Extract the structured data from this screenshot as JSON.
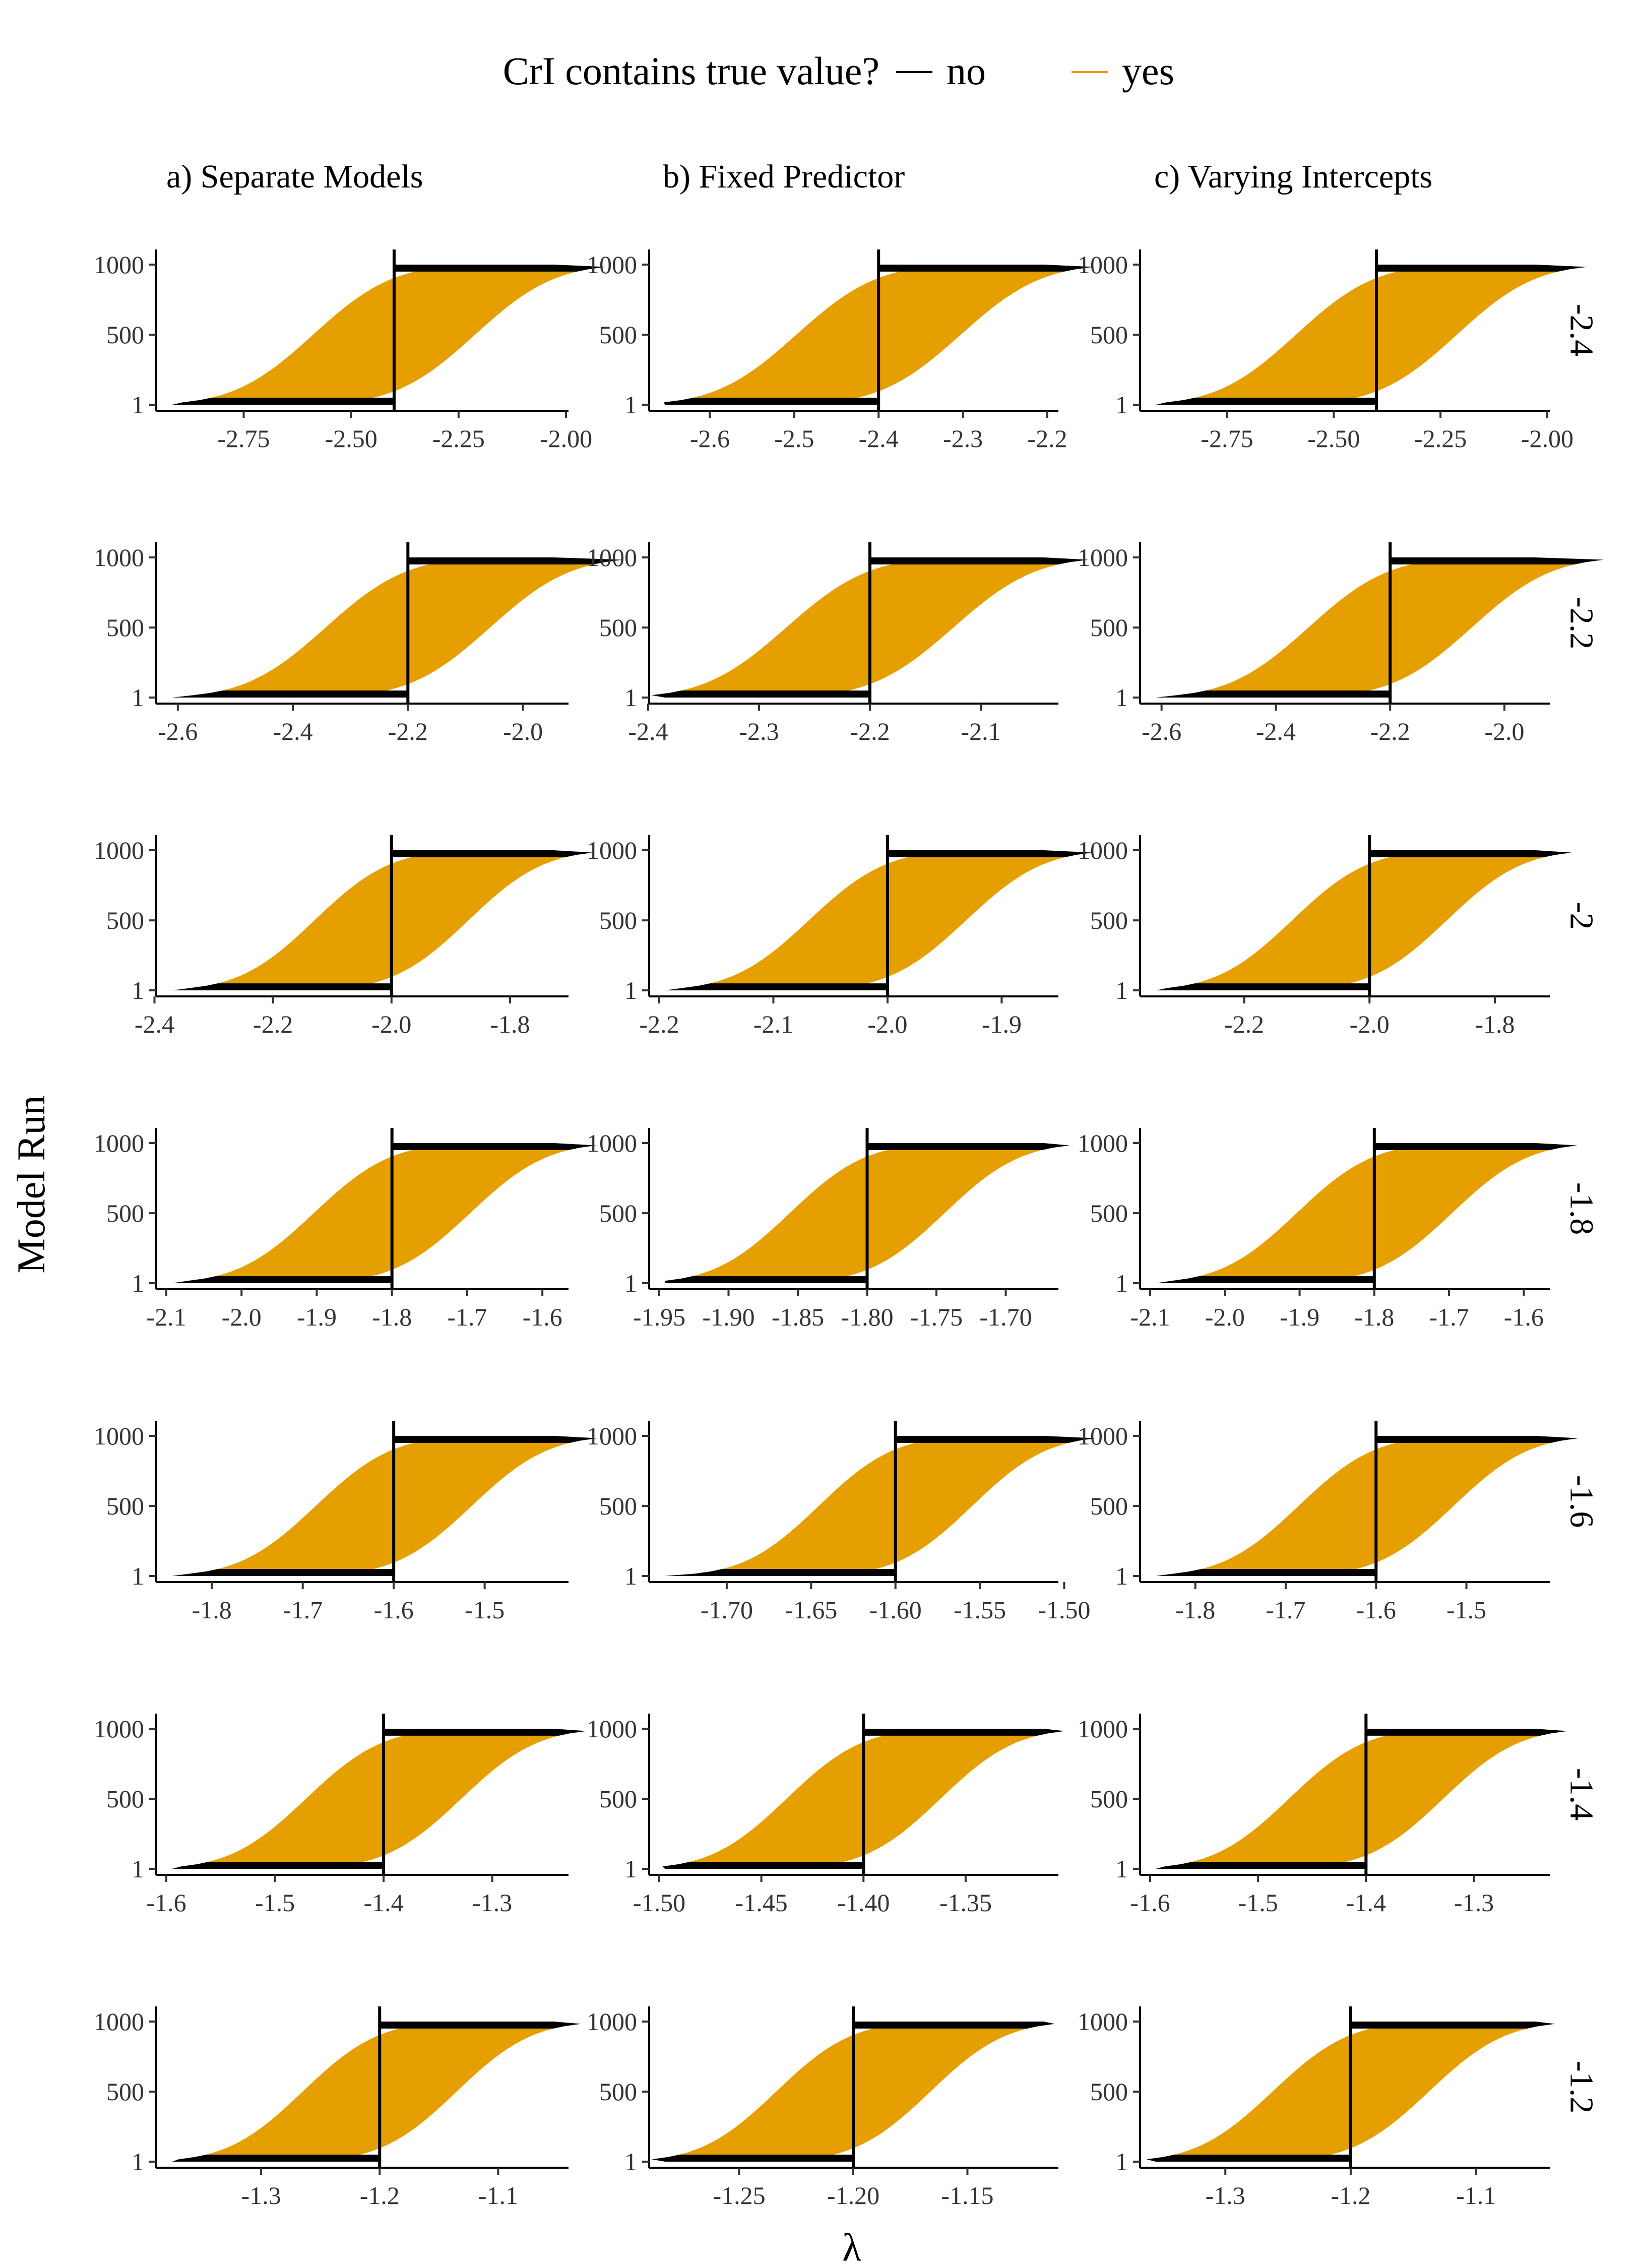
{
  "chart_data": {
    "type": "area",
    "legend": {
      "title": "CrI contains true value?",
      "placement": "top",
      "entries": [
        {
          "label": "no",
          "color": "#000000"
        },
        {
          "label": "yes",
          "color": "#E69F00"
        }
      ]
    },
    "xlabel": "λ",
    "ylabel": "Model Run",
    "y_ticks": [
      1,
      500,
      1000
    ],
    "ylim": [
      1,
      1000
    ],
    "columns": [
      "a) Separate Models",
      "b) Fixed Predictor",
      "c) Varying Intercepts"
    ],
    "rows": [
      {
        "strip": "-2.4",
        "true_value": -2.4,
        "panels": [
          {
            "xlim": [
              -2.93,
              -2.02
            ],
            "ticks": [
              -2.75,
              -2.5,
              -2.25,
              -2.0
            ],
            "tick_labels": [
              "-2.75",
              "-2.50",
              "-2.25",
              "-2.00"
            ],
            "sd": 0.145
          },
          {
            "xlim": [
              -2.66,
              -2.2
            ],
            "ticks": [
              -2.6,
              -2.5,
              -2.4,
              -2.3,
              -2.2
            ],
            "tick_labels": [
              "-2.6",
              "-2.5",
              "-2.4",
              "-2.3",
              "-2.2"
            ],
            "sd": 0.075
          },
          {
            "xlim": [
              -2.93,
              -2.02
            ],
            "ticks": [
              -2.75,
              -2.5,
              -2.25,
              -2.0
            ],
            "tick_labels": [
              "-2.75",
              "-2.50",
              "-2.25",
              "-2.00"
            ],
            "sd": 0.145
          }
        ]
      },
      {
        "strip": "-2.2",
        "true_value": -2.2,
        "panels": [
          {
            "xlim": [
              -2.62,
              -1.94
            ],
            "ticks": [
              -2.6,
              -2.4,
              -2.2,
              -2.0
            ],
            "tick_labels": [
              "-2.6",
              "-2.4",
              "-2.2",
              "-2.0"
            ],
            "sd": 0.11
          },
          {
            "xlim": [
              -2.39,
              -2.04
            ],
            "ticks": [
              -2.4,
              -2.3,
              -2.2,
              -2.1
            ],
            "tick_labels": [
              "-2.4",
              "-2.3",
              "-2.2",
              "-2.1"
            ],
            "sd": 0.058
          },
          {
            "xlim": [
              -2.62,
              -1.94
            ],
            "ticks": [
              -2.6,
              -2.4,
              -2.2,
              -2.0
            ],
            "tick_labels": [
              "-2.6",
              "-2.4",
              "-2.2",
              "-2.0"
            ],
            "sd": 0.11
          }
        ]
      },
      {
        "strip": "-2",
        "true_value": -2.0,
        "panels": [
          {
            "xlim": [
              -2.38,
              -1.72
            ],
            "ticks": [
              -2.4,
              -2.2,
              -2.0,
              -1.8
            ],
            "tick_labels": [
              "-2.4",
              "-2.2",
              "-2.0",
              "-1.8"
            ],
            "sd": 0.1
          },
          {
            "xlim": [
              -2.2,
              -1.86
            ],
            "ticks": [
              -2.2,
              -2.1,
              -2.0,
              -1.9
            ],
            "tick_labels": [
              "-2.2",
              "-2.1",
              "-2.0",
              "-1.9"
            ],
            "sd": 0.053
          },
          {
            "xlim": [
              -2.35,
              -1.73
            ],
            "ticks": [
              -2.2,
              -2.0,
              -1.8
            ],
            "tick_labels": [
              "-2.2",
              "-2.0",
              "-1.8"
            ],
            "sd": 0.095
          }
        ]
      },
      {
        "strip": "-1.8",
        "true_value": -1.8,
        "panels": [
          {
            "xlim": [
              -2.1,
              -1.58
            ],
            "ticks": [
              -2.1,
              -2.0,
              -1.9,
              -1.8,
              -1.7,
              -1.6
            ],
            "tick_labels": [
              "-2.1",
              "-2.0",
              "-1.9",
              "-1.8",
              "-1.7",
              "-1.6"
            ],
            "sd": 0.08
          },
          {
            "xlim": [
              -1.95,
              -1.67
            ],
            "ticks": [
              -1.95,
              -1.9,
              -1.85,
              -1.8,
              -1.75,
              -1.7
            ],
            "tick_labels": [
              "-1.95",
              "-1.90",
              "-1.85",
              "-1.80",
              "-1.75",
              "-1.70"
            ],
            "sd": 0.043
          },
          {
            "xlim": [
              -2.1,
              -1.58
            ],
            "ticks": [
              -2.1,
              -2.0,
              -1.9,
              -1.8,
              -1.7,
              -1.6
            ],
            "tick_labels": [
              "-2.1",
              "-2.0",
              "-1.9",
              "-1.8",
              "-1.7",
              "-1.6"
            ],
            "sd": 0.08
          }
        ]
      },
      {
        "strip": "-1.6",
        "true_value": -1.6,
        "panels": [
          {
            "xlim": [
              -1.85,
              -1.42
            ],
            "ticks": [
              -1.8,
              -1.7,
              -1.6,
              -1.5
            ],
            "tick_labels": [
              "-1.8",
              "-1.7",
              "-1.6",
              "-1.5"
            ],
            "sd": 0.066
          },
          {
            "xlim": [
              -1.74,
              -1.51
            ],
            "ticks": [
              -1.7,
              -1.65,
              -1.6,
              -1.55,
              -1.5
            ],
            "tick_labels": [
              "-1.70",
              "-1.65",
              "-1.60",
              "-1.55",
              "-1.50"
            ],
            "sd": 0.035
          },
          {
            "xlim": [
              -1.85,
              -1.42
            ],
            "ticks": [
              -1.8,
              -1.7,
              -1.6,
              -1.5
            ],
            "tick_labels": [
              "-1.8",
              "-1.7",
              "-1.6",
              "-1.5"
            ],
            "sd": 0.066
          }
        ]
      },
      {
        "strip": "-1.4",
        "true_value": -1.4,
        "panels": [
          {
            "xlim": [
              -1.6,
              -1.24
            ],
            "ticks": [
              -1.6,
              -1.5,
              -1.4,
              -1.3
            ],
            "tick_labels": [
              "-1.6",
              "-1.5",
              "-1.4",
              "-1.3"
            ],
            "sd": 0.055
          },
          {
            "xlim": [
              -1.5,
              -1.31
            ],
            "ticks": [
              -1.5,
              -1.45,
              -1.4,
              -1.35
            ],
            "tick_labels": [
              "-1.50",
              "-1.45",
              "-1.40",
              "-1.35"
            ],
            "sd": 0.029
          },
          {
            "xlim": [
              -1.6,
              -1.24
            ],
            "ticks": [
              -1.6,
              -1.5,
              -1.4,
              -1.3
            ],
            "tick_labels": [
              "-1.6",
              "-1.5",
              "-1.4",
              "-1.3"
            ],
            "sd": 0.055
          }
        ]
      },
      {
        "strip": "-1.2",
        "true_value": -1.2,
        "panels": [
          {
            "xlim": [
              -1.38,
              -1.05
            ],
            "ticks": [
              -1.3,
              -1.2,
              -1.1
            ],
            "tick_labels": [
              "-1.3",
              "-1.2",
              "-1.1"
            ],
            "sd": 0.05
          },
          {
            "xlim": [
              -1.285,
              -1.115
            ],
            "ticks": [
              -1.25,
              -1.2,
              -1.15
            ],
            "tick_labels": [
              "-1.25",
              "-1.20",
              "-1.15"
            ],
            "sd": 0.026
          },
          {
            "xlim": [
              -1.36,
              -1.05
            ],
            "ticks": [
              -1.3,
              -1.2,
              -1.1
            ],
            "tick_labels": [
              "-1.3",
              "-1.2",
              "-1.1"
            ],
            "sd": 0.048
          }
        ]
      }
    ]
  }
}
